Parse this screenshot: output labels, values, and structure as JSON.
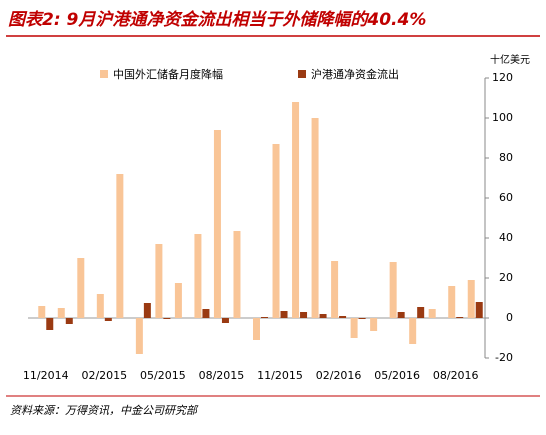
{
  "chart_data": {
    "type": "bar",
    "title": "图表2: 9月沪港通净资金流出相当于外储降幅的40.4%",
    "y_unit": "十亿美元",
    "source": "资料来源：万得资讯，中金公司研究部",
    "categories": [
      "11/2014",
      null,
      null,
      "02/2015",
      null,
      null,
      "05/2015",
      null,
      null,
      "08/2015",
      null,
      null,
      "11/2015",
      null,
      null,
      "02/2016",
      null,
      null,
      "05/2016",
      null,
      null,
      "08/2016",
      null
    ],
    "series": [
      {
        "name": "中国外汇储备月度降幅",
        "color": "#f9c597",
        "values": [
          6,
          5,
          30,
          12,
          72,
          -18,
          37,
          17.5,
          42,
          94,
          43.5,
          -11,
          87,
          108,
          100,
          28.5,
          -10,
          -6.5,
          28,
          -13,
          4.5,
          16,
          19
        ]
      },
      {
        "name": "沪港通净资金流出",
        "color": "#9a3a12",
        "values": [
          -6,
          -3,
          0,
          -1.5,
          0,
          7.5,
          -0.5,
          0,
          4.5,
          -2.5,
          0,
          0.5,
          3.5,
          3,
          2,
          1,
          -0.5,
          0,
          3,
          5.5,
          0,
          0.5,
          8
        ]
      }
    ],
    "ylim": [
      -20,
      120
    ],
    "yticks": [
      -20,
      0,
      20,
      40,
      60,
      80,
      100,
      120
    ],
    "y_axis_side": "right",
    "legend": "top-left"
  }
}
